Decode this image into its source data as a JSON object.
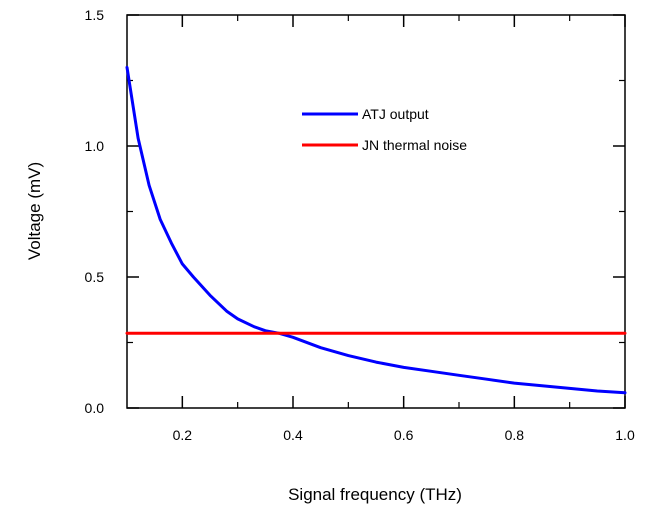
{
  "chart_data": {
    "type": "line",
    "xlabel": "Signal frequency (THz)",
    "ylabel": "Voltage  (mV)",
    "xlim": [
      0.1,
      1.0
    ],
    "ylim": [
      0.0,
      1.5
    ],
    "xticks": [
      "0.2",
      "0.4",
      "0.6",
      "0.8",
      "1.0"
    ],
    "yticks": [
      "0.0",
      "0.5",
      "1.0",
      "1.5"
    ],
    "grid": false,
    "legend_position": "top-center",
    "series": [
      {
        "name": "ATJ output",
        "color": "#0000ff",
        "x": [
          0.1,
          0.12,
          0.14,
          0.16,
          0.18,
          0.2,
          0.22,
          0.25,
          0.28,
          0.3,
          0.33,
          0.35,
          0.375,
          0.4,
          0.45,
          0.5,
          0.55,
          0.6,
          0.65,
          0.7,
          0.75,
          0.8,
          0.85,
          0.9,
          0.95,
          1.0
        ],
        "y": [
          1.3,
          1.03,
          0.85,
          0.72,
          0.63,
          0.55,
          0.5,
          0.43,
          0.37,
          0.34,
          0.31,
          0.295,
          0.285,
          0.27,
          0.23,
          0.2,
          0.175,
          0.155,
          0.14,
          0.125,
          0.11,
          0.095,
          0.085,
          0.075,
          0.065,
          0.058
        ]
      },
      {
        "name": "JN thermal noise",
        "color": "#ff0000",
        "x": [
          0.1,
          1.0
        ],
        "y": [
          0.285,
          0.285
        ]
      }
    ]
  }
}
